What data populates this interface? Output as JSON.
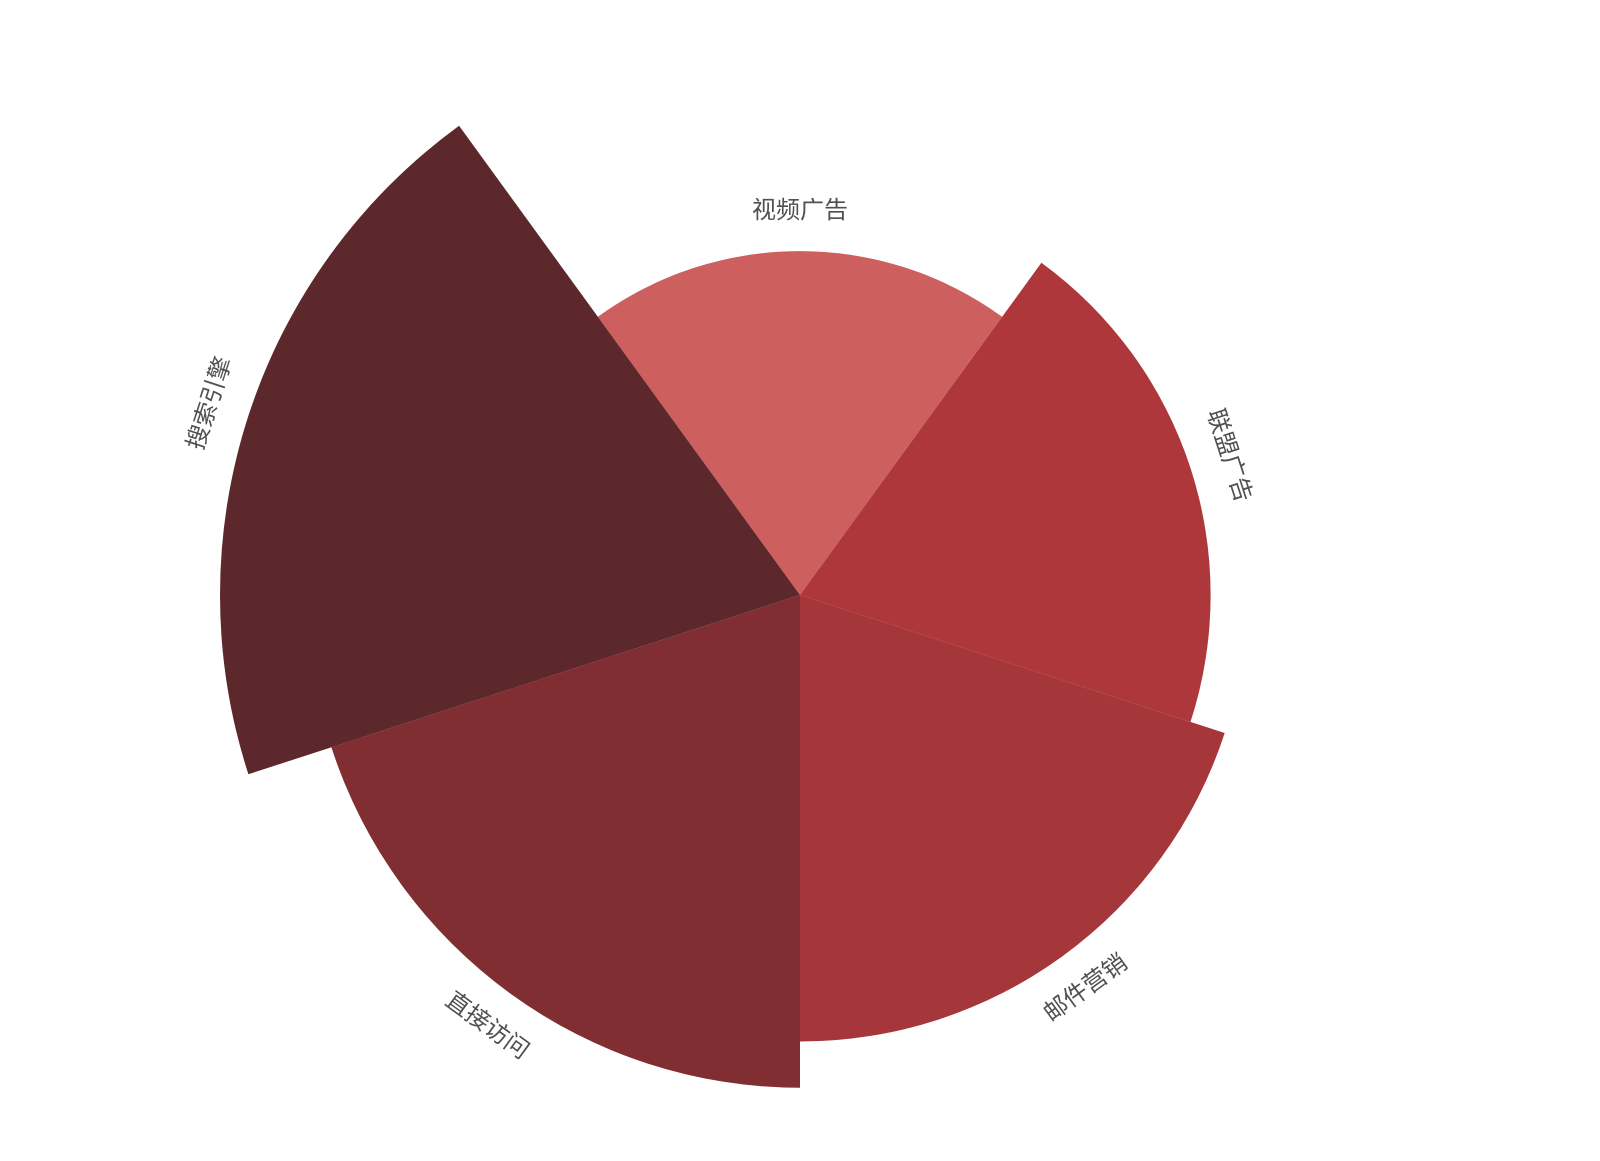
{
  "chart_data": {
    "type": "pie",
    "variant": "rose",
    "title": "",
    "categories": [
      "视频广告",
      "联盟广告",
      "邮件营销",
      "直接访问",
      "搜索引擎"
    ],
    "values": [
      335,
      400,
      435,
      480,
      565
    ],
    "colors": [
      "#cd605f",
      "#ad373a",
      "#a5363a",
      "#812e33",
      "#5c282c"
    ],
    "legend": "none"
  }
}
